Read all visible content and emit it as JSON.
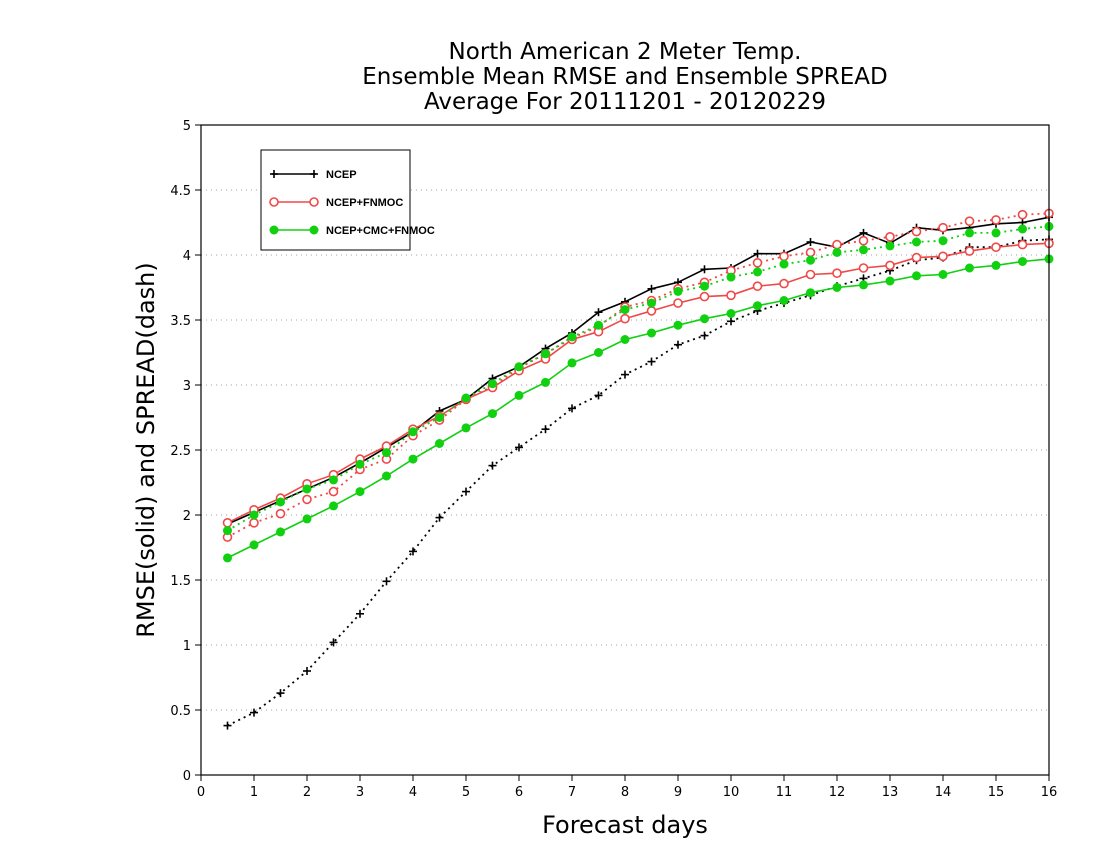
{
  "chart_data": {
    "type": "line",
    "title": [
      "North American 2 Meter Temp.",
      "Ensemble Mean RMSE and Ensemble SPREAD",
      "Average For 20111201 - 20120229"
    ],
    "xlabel": "Forecast days",
    "ylabel": "RMSE(solid)  and  SPREAD(dash)",
    "xlim": [
      0,
      16
    ],
    "ylim": [
      0,
      5
    ],
    "xticks": [
      "0",
      "1",
      "2",
      "3",
      "4",
      "5",
      "6",
      "7",
      "8",
      "9",
      "10",
      "11",
      "12",
      "13",
      "14",
      "15",
      "16"
    ],
    "yticks": [
      "0",
      "0.5",
      "1",
      "1.5",
      "2",
      "2.5",
      "3",
      "3.5",
      "4",
      "4.5",
      "5"
    ],
    "grid": "horizontal dotted",
    "legend_position": "top-left",
    "x": [
      0.5,
      1,
      1.5,
      2,
      2.5,
      3,
      3.5,
      4,
      4.5,
      5,
      5.5,
      6,
      6.5,
      7,
      7.5,
      8,
      8.5,
      9,
      9.5,
      10,
      10.5,
      11,
      11.5,
      12,
      12.5,
      13,
      13.5,
      14,
      14.5,
      15,
      15.5,
      16
    ],
    "series": [
      {
        "name": "NCEP",
        "color": "#000000",
        "marker": "plus",
        "rmse": [
          1.93,
          2.02,
          2.11,
          2.2,
          2.29,
          2.4,
          2.52,
          2.64,
          2.8,
          2.89,
          3.05,
          3.14,
          3.28,
          3.4,
          3.56,
          3.64,
          3.74,
          3.79,
          3.89,
          3.9,
          4.01,
          4.01,
          4.1,
          4.06,
          4.17,
          4.09,
          4.21,
          4.19,
          4.21,
          4.24,
          4.25,
          4.29
        ],
        "spread": [
          0.38,
          0.48,
          0.63,
          0.8,
          1.02,
          1.24,
          1.49,
          1.72,
          1.98,
          2.18,
          2.38,
          2.52,
          2.66,
          2.82,
          2.92,
          3.08,
          3.18,
          3.31,
          3.38,
          3.49,
          3.57,
          3.63,
          3.69,
          3.76,
          3.82,
          3.88,
          3.96,
          3.98,
          4.06,
          4.06,
          4.11,
          4.12
        ]
      },
      {
        "name": "NCEP+FNMOC",
        "color": "#f04848",
        "marker": "circle",
        "rmse": [
          1.94,
          2.04,
          2.13,
          2.24,
          2.31,
          2.43,
          2.53,
          2.66,
          2.76,
          2.89,
          2.98,
          3.11,
          3.2,
          3.35,
          3.41,
          3.51,
          3.57,
          3.63,
          3.68,
          3.69,
          3.76,
          3.78,
          3.85,
          3.86,
          3.9,
          3.92,
          3.98,
          3.99,
          4.03,
          4.06,
          4.08,
          4.09
        ],
        "spread": [
          1.83,
          1.94,
          2.01,
          2.12,
          2.18,
          2.35,
          2.43,
          2.61,
          2.73,
          2.89,
          2.99,
          3.13,
          3.24,
          3.36,
          3.45,
          3.6,
          3.65,
          3.74,
          3.79,
          3.88,
          3.94,
          3.99,
          4.02,
          4.08,
          4.11,
          4.14,
          4.18,
          4.21,
          4.26,
          4.27,
          4.31,
          4.32
        ]
      },
      {
        "name": "NCEP+CMC+FNMOC",
        "color": "#10d010",
        "marker": "dot",
        "rmse": [
          1.67,
          1.77,
          1.87,
          1.97,
          2.07,
          2.18,
          2.3,
          2.43,
          2.55,
          2.67,
          2.78,
          2.92,
          3.02,
          3.17,
          3.25,
          3.35,
          3.4,
          3.46,
          3.51,
          3.55,
          3.61,
          3.65,
          3.71,
          3.75,
          3.77,
          3.8,
          3.84,
          3.85,
          3.9,
          3.92,
          3.95,
          3.97
        ],
        "spread": [
          1.88,
          2.0,
          2.1,
          2.2,
          2.27,
          2.39,
          2.48,
          2.64,
          2.75,
          2.9,
          3.01,
          3.14,
          3.24,
          3.37,
          3.46,
          3.58,
          3.63,
          3.72,
          3.76,
          3.83,
          3.87,
          3.93,
          3.96,
          4.02,
          4.04,
          4.07,
          4.1,
          4.11,
          4.17,
          4.17,
          4.2,
          4.22
        ]
      }
    ]
  }
}
